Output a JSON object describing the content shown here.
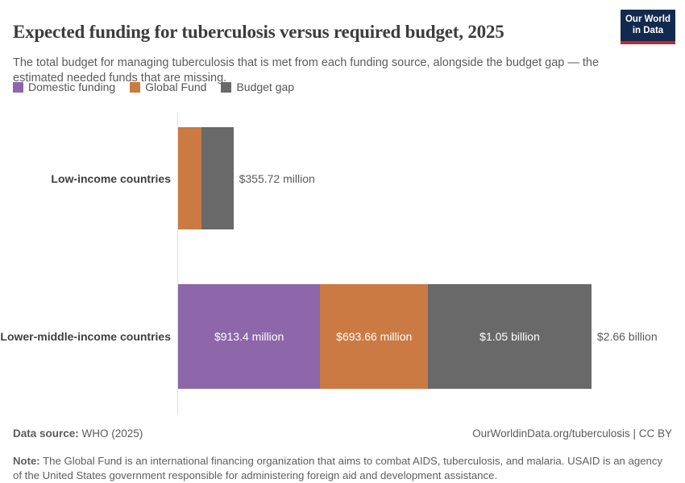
{
  "header": {
    "title": "Expected funding for tuberculosis versus required budget, 2025",
    "subtitle": "The total budget for managing tuberculosis that is met from each funding source, alongside the budget gap — the estimated needed funds that are missing.",
    "logo_line1": "Our World",
    "logo_line2": "in Data",
    "logo_bg": "#13294e",
    "logo_stripe": "#c0292e"
  },
  "legend": [
    {
      "label": "Domestic funding",
      "color": "#8d67aa"
    },
    {
      "label": "Global Fund",
      "color": "#cb7a43"
    },
    {
      "label": "Budget gap",
      "color": "#696969"
    }
  ],
  "chart_data": {
    "type": "bar",
    "orientation": "horizontal",
    "stacked": true,
    "unit": "US dollars",
    "xlim_millions": [
      0,
      2660
    ],
    "categories": [
      "Low-income countries",
      "Lower-middle-income countries"
    ],
    "series": [
      {
        "name": "Domestic funding",
        "color": "#8d67aa",
        "values_millions": [
          0,
          913.4
        ],
        "bar_labels": [
          "",
          "$913.4 million"
        ]
      },
      {
        "name": "Global Fund",
        "color": "#cb7a43",
        "values_millions": [
          150.5,
          693.66
        ],
        "bar_labels": [
          "",
          "$693.66 million"
        ]
      },
      {
        "name": "Budget gap",
        "color": "#696969",
        "values_millions": [
          205.22,
          1050
        ],
        "bar_labels": [
          "",
          "$1.05 billion"
        ]
      }
    ],
    "totals": [
      "$355.72 million",
      "$2.66 billion"
    ]
  },
  "footer": {
    "source_label": "Data source:",
    "source_value": " WHO (2025)",
    "link": "OurWorldinData.org/tuberculosis | CC BY",
    "note_label": "Note:",
    "note_value": " The Global Fund is an international financing organization that aims to combat AIDS, tuberculosis, and malaria. USAID is an agency of the United States government responsible for administering foreign aid and development assistance."
  }
}
